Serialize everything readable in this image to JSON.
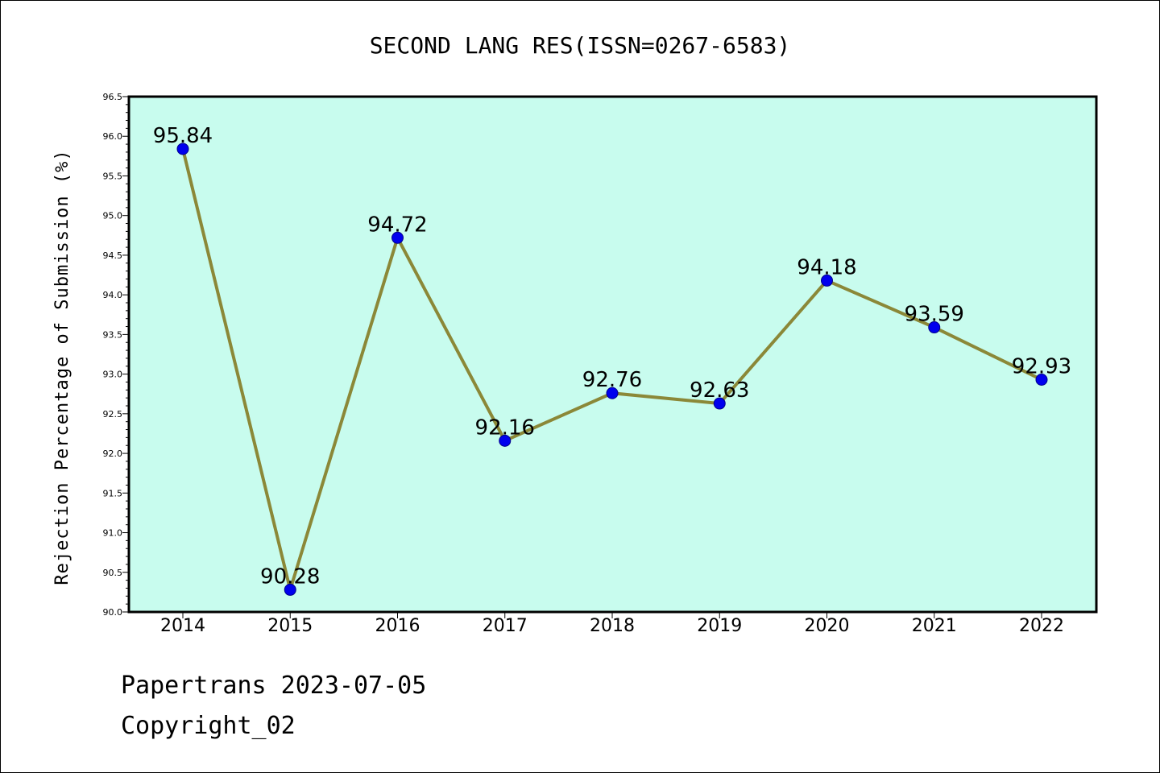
{
  "chart_data": {
    "type": "line",
    "title": "SECOND LANG RES(ISSN=0267-6583)",
    "ylabel": "Rejection Percentage of Submission (%)",
    "xlabel": "",
    "categories": [
      "2014",
      "2015",
      "2016",
      "2017",
      "2018",
      "2019",
      "2020",
      "2021",
      "2022"
    ],
    "series": [
      {
        "values": [
          95.84,
          90.28,
          94.72,
          92.16,
          92.76,
          92.63,
          94.18,
          93.59,
          92.93
        ]
      }
    ],
    "data_labels": [
      "95.84",
      "90.28",
      "94.72",
      "92.16",
      "92.76",
      "92.63",
      "94.18",
      "93.59",
      "92.93"
    ],
    "ylim": [
      90.0,
      96.5
    ],
    "yticks": [
      "90.0",
      "90.5",
      "91.0",
      "91.5",
      "92.0",
      "92.5",
      "93.0",
      "93.5",
      "94.0",
      "94.5",
      "95.0",
      "95.5",
      "96.0",
      "96.5"
    ],
    "grid": false,
    "colors": {
      "plot_background": "#c8fcee",
      "line": "#8b8838",
      "marker": "#0000ee"
    }
  },
  "footer": {
    "line1": "Papertrans 2023-07-05",
    "line2": "Copyright_02"
  }
}
